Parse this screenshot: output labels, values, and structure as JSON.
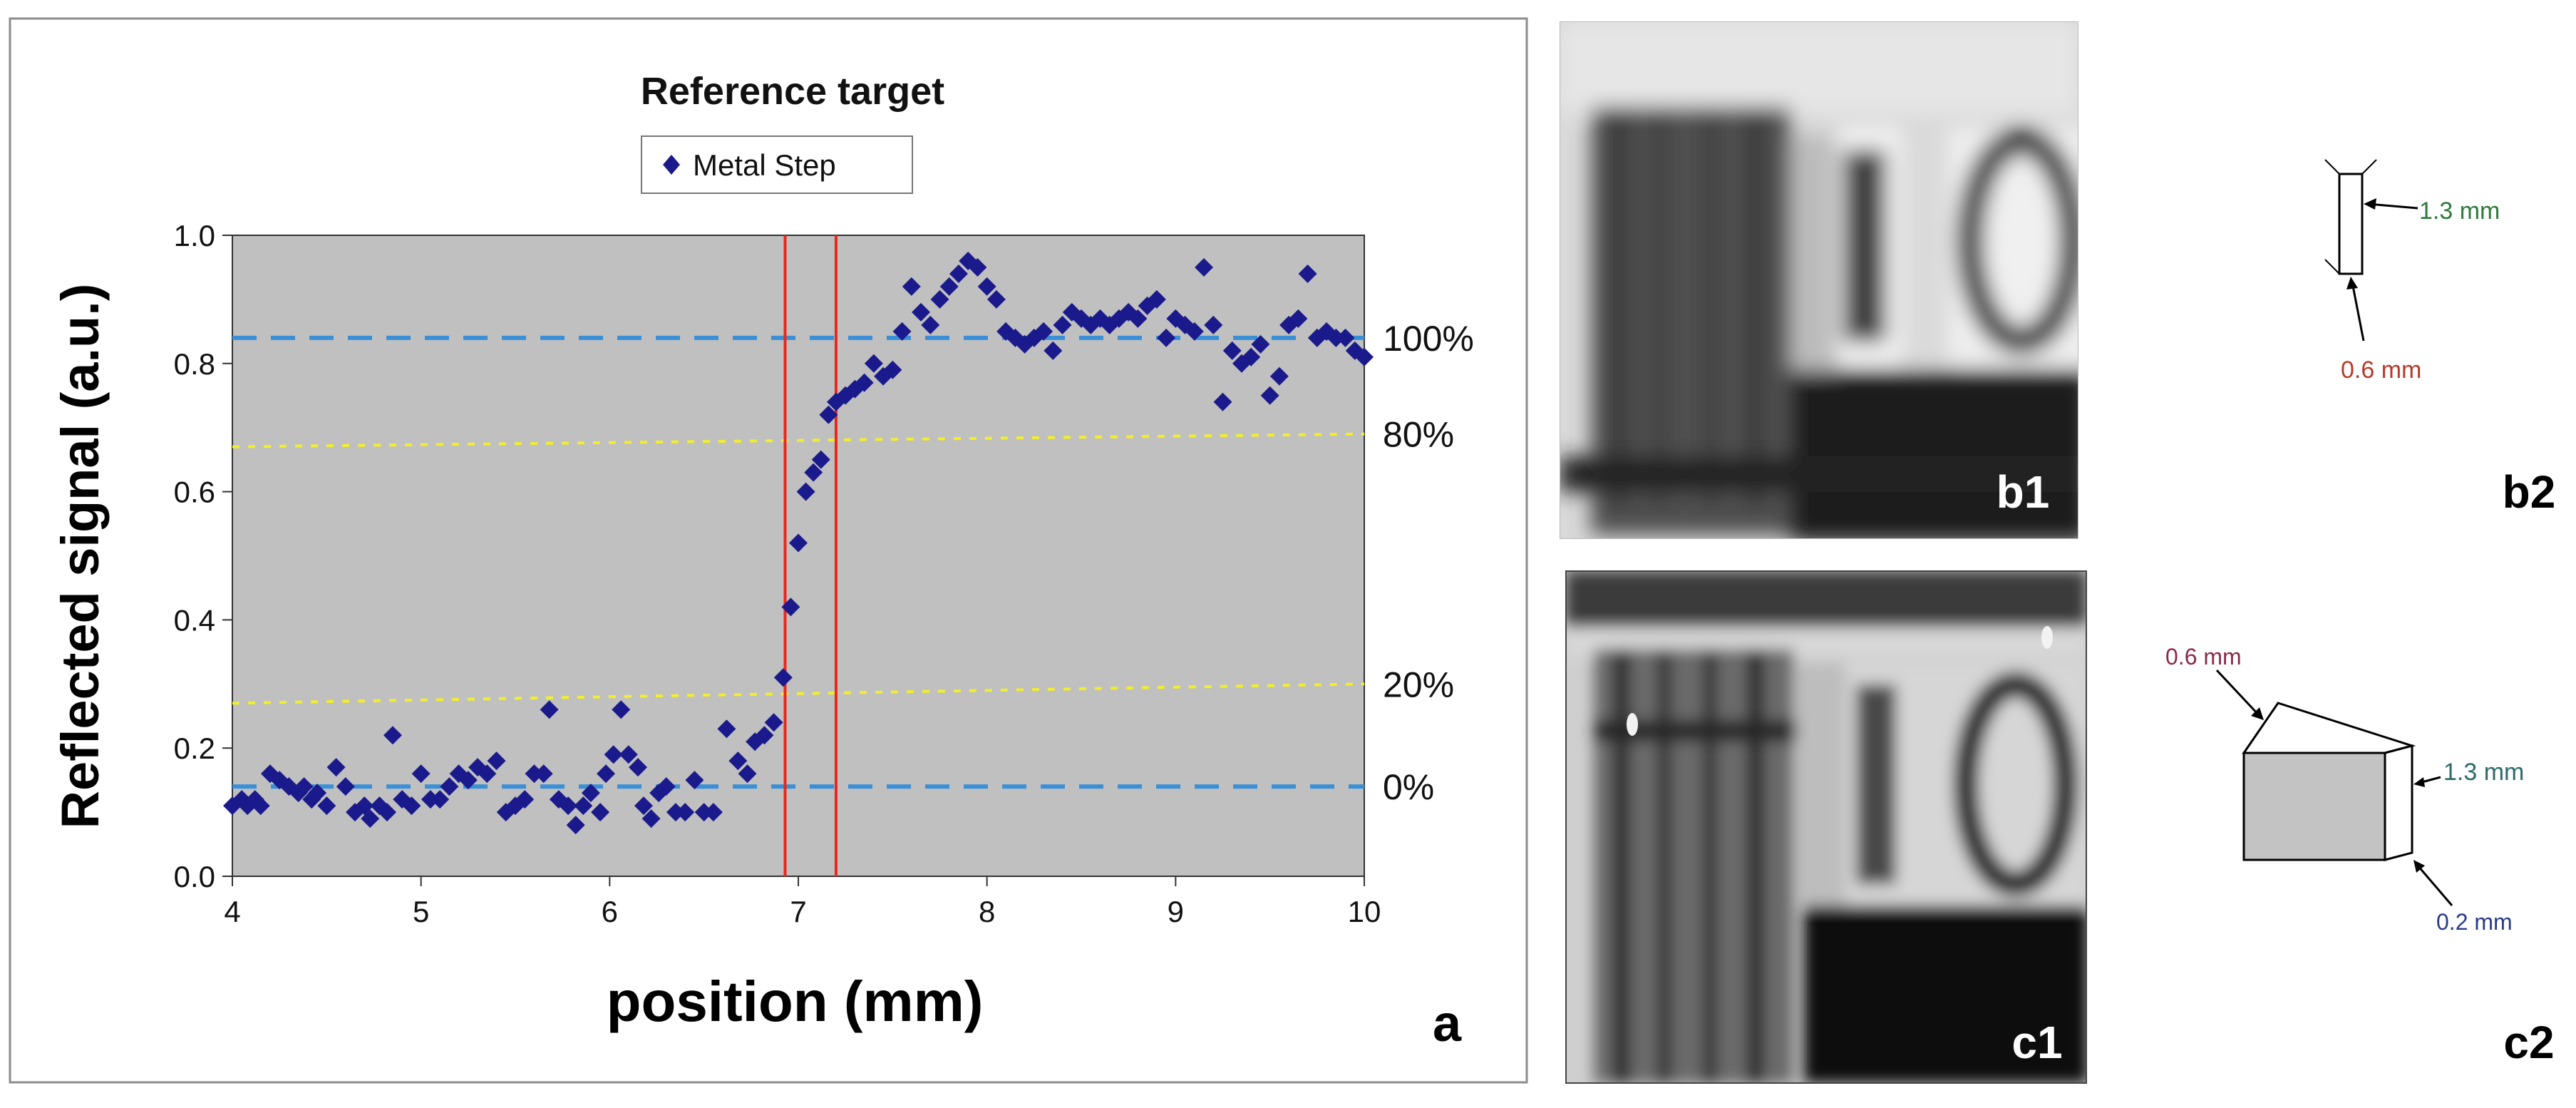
{
  "panel_labels": {
    "a": "a",
    "b1": "b1",
    "b2": "b2",
    "c1": "c1",
    "c2": "c2"
  },
  "chart_data": {
    "type": "scatter",
    "title": "Reference target",
    "xlabel": "position (mm)",
    "ylabel": "Reflected signal (a.u.)",
    "xlim": [
      4,
      10
    ],
    "ylim": [
      0,
      1
    ],
    "x_ticks": [
      "4",
      "5",
      "6",
      "7",
      "8",
      "9",
      "10"
    ],
    "y_ticks": [
      "0.0",
      "0.2",
      "0.4",
      "0.6",
      "0.8",
      "1.0"
    ],
    "grid": false,
    "legend_position": "top-center",
    "series": [
      {
        "name": "Metal Step",
        "color": "#1a1a8c",
        "marker": "diamond",
        "points": [
          [
            4.0,
            0.11
          ],
          [
            4.05,
            0.12
          ],
          [
            4.08,
            0.11
          ],
          [
            4.12,
            0.12
          ],
          [
            4.15,
            0.11
          ],
          [
            4.2,
            0.16
          ],
          [
            4.25,
            0.15
          ],
          [
            4.3,
            0.14
          ],
          [
            4.35,
            0.13
          ],
          [
            4.38,
            0.14
          ],
          [
            4.42,
            0.12
          ],
          [
            4.45,
            0.13
          ],
          [
            4.5,
            0.11
          ],
          [
            4.55,
            0.17
          ],
          [
            4.6,
            0.14
          ],
          [
            4.65,
            0.1
          ],
          [
            4.7,
            0.11
          ],
          [
            4.73,
            0.09
          ],
          [
            4.78,
            0.11
          ],
          [
            4.82,
            0.1
          ],
          [
            4.85,
            0.22
          ],
          [
            4.9,
            0.12
          ],
          [
            4.95,
            0.11
          ],
          [
            5.0,
            0.16
          ],
          [
            5.05,
            0.12
          ],
          [
            5.1,
            0.12
          ],
          [
            5.15,
            0.14
          ],
          [
            5.2,
            0.16
          ],
          [
            5.25,
            0.15
          ],
          [
            5.3,
            0.17
          ],
          [
            5.35,
            0.16
          ],
          [
            5.4,
            0.18
          ],
          [
            5.45,
            0.1
          ],
          [
            5.5,
            0.11
          ],
          [
            5.55,
            0.12
          ],
          [
            5.6,
            0.16
          ],
          [
            5.65,
            0.16
          ],
          [
            5.68,
            0.26
          ],
          [
            5.73,
            0.12
          ],
          [
            5.78,
            0.11
          ],
          [
            5.82,
            0.08
          ],
          [
            5.86,
            0.11
          ],
          [
            5.9,
            0.13
          ],
          [
            5.95,
            0.1
          ],
          [
            5.98,
            0.16
          ],
          [
            6.02,
            0.19
          ],
          [
            6.06,
            0.26
          ],
          [
            6.1,
            0.19
          ],
          [
            6.15,
            0.17
          ],
          [
            6.18,
            0.11
          ],
          [
            6.22,
            0.09
          ],
          [
            6.26,
            0.13
          ],
          [
            6.3,
            0.14
          ],
          [
            6.35,
            0.1
          ],
          [
            6.4,
            0.1
          ],
          [
            6.45,
            0.15
          ],
          [
            6.5,
            0.1
          ],
          [
            6.55,
            0.1
          ],
          [
            6.62,
            0.23
          ],
          [
            6.68,
            0.18
          ],
          [
            6.73,
            0.16
          ],
          [
            6.77,
            0.21
          ],
          [
            6.82,
            0.22
          ],
          [
            6.87,
            0.24
          ],
          [
            6.92,
            0.31
          ],
          [
            6.96,
            0.42
          ],
          [
            7.0,
            0.52
          ],
          [
            7.04,
            0.6
          ],
          [
            7.08,
            0.63
          ],
          [
            7.12,
            0.65
          ],
          [
            7.16,
            0.72
          ],
          [
            7.2,
            0.74
          ],
          [
            7.25,
            0.75
          ],
          [
            7.3,
            0.76
          ],
          [
            7.35,
            0.77
          ],
          [
            7.4,
            0.8
          ],
          [
            7.45,
            0.78
          ],
          [
            7.5,
            0.79
          ],
          [
            7.55,
            0.85
          ],
          [
            7.6,
            0.92
          ],
          [
            7.65,
            0.88
          ],
          [
            7.7,
            0.86
          ],
          [
            7.75,
            0.9
          ],
          [
            7.8,
            0.92
          ],
          [
            7.85,
            0.94
          ],
          [
            7.9,
            0.96
          ],
          [
            7.95,
            0.95
          ],
          [
            8.0,
            0.92
          ],
          [
            8.05,
            0.9
          ],
          [
            8.1,
            0.85
          ],
          [
            8.15,
            0.84
          ],
          [
            8.2,
            0.83
          ],
          [
            8.25,
            0.84
          ],
          [
            8.3,
            0.85
          ],
          [
            8.35,
            0.82
          ],
          [
            8.4,
            0.86
          ],
          [
            8.45,
            0.88
          ],
          [
            8.5,
            0.87
          ],
          [
            8.55,
            0.86
          ],
          [
            8.6,
            0.87
          ],
          [
            8.65,
            0.86
          ],
          [
            8.7,
            0.87
          ],
          [
            8.75,
            0.88
          ],
          [
            8.8,
            0.87
          ],
          [
            8.85,
            0.89
          ],
          [
            8.9,
            0.9
          ],
          [
            8.95,
            0.84
          ],
          [
            9.0,
            0.87
          ],
          [
            9.05,
            0.86
          ],
          [
            9.1,
            0.85
          ],
          [
            9.15,
            0.95
          ],
          [
            9.2,
            0.86
          ],
          [
            9.25,
            0.74
          ],
          [
            9.3,
            0.82
          ],
          [
            9.35,
            0.8
          ],
          [
            9.4,
            0.81
          ],
          [
            9.45,
            0.83
          ],
          [
            9.5,
            0.75
          ],
          [
            9.55,
            0.78
          ],
          [
            9.6,
            0.86
          ],
          [
            9.65,
            0.87
          ],
          [
            9.7,
            0.94
          ],
          [
            9.75,
            0.84
          ],
          [
            9.8,
            0.85
          ],
          [
            9.85,
            0.84
          ],
          [
            9.9,
            0.84
          ],
          [
            9.95,
            0.82
          ],
          [
            10.0,
            0.81
          ]
        ]
      }
    ],
    "reference_lines": [
      {
        "label": "100%",
        "style": "dashed",
        "color": "#3a8fd6",
        "from": [
          4,
          0.84
        ],
        "to": [
          10,
          0.84
        ]
      },
      {
        "label": "80%",
        "style": "dotted",
        "color": "#f2ef2a",
        "from": [
          4,
          0.67
        ],
        "to": [
          10,
          0.69
        ]
      },
      {
        "label": "20%",
        "style": "dotted",
        "color": "#f2ef2a",
        "from": [
          4,
          0.27
        ],
        "to": [
          10,
          0.3
        ]
      },
      {
        "label": "0%",
        "style": "dashed",
        "color": "#3a8fd6",
        "from": [
          4,
          0.14
        ],
        "to": [
          10,
          0.14
        ]
      }
    ],
    "vertical_lines": [
      {
        "x": 6.93,
        "color": "#e8281e"
      },
      {
        "x": 7.2,
        "color": "#e8281e"
      }
    ],
    "plot_background": "#c0c0c0"
  },
  "diagram_b2": {
    "dim_height": "1.3 mm",
    "dim_width": "0.6 mm"
  },
  "diagram_c2": {
    "dim_top": "0.6 mm",
    "dim_height": "1.3 mm",
    "dim_depth": "0.2 mm"
  }
}
